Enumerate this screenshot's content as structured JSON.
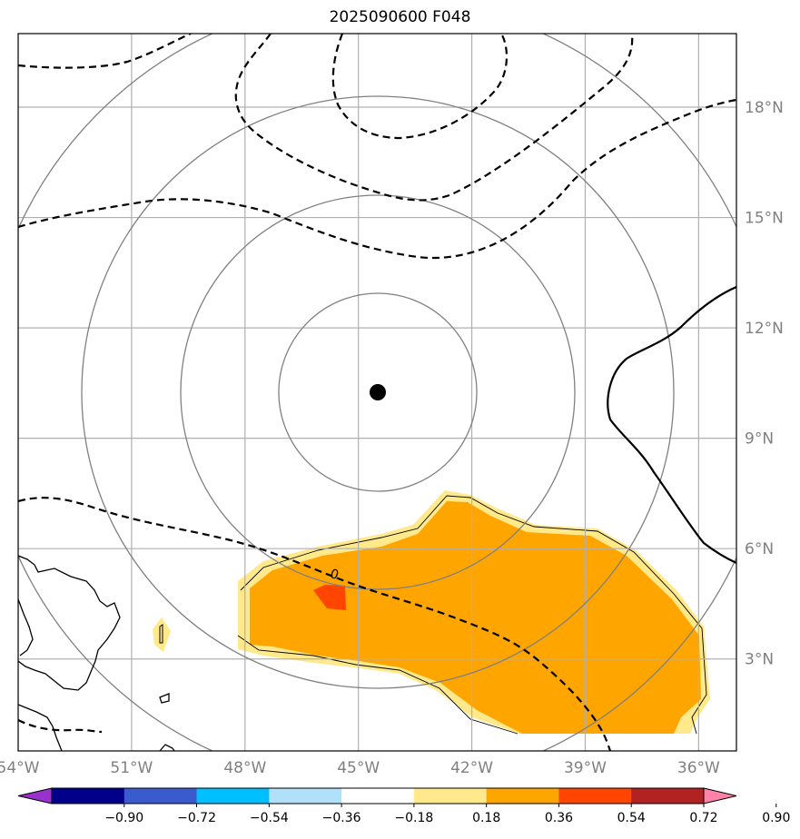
{
  "title": "2025090600 F048",
  "map": {
    "lon_range": [
      -54.0,
      -35.0
    ],
    "lat_range": [
      0.5,
      20.0
    ],
    "lon_ticks": [
      "54°W",
      "51°W",
      "48°W",
      "45°W",
      "42°W",
      "39°W",
      "36°W"
    ],
    "lat_ticks": [
      "3°N",
      "6°N",
      "9°N",
      "12°N",
      "15°N",
      "18°N"
    ],
    "gridlines": true,
    "storm_center": {
      "lon": -44.5,
      "lat": 10.5
    },
    "range_rings": 4,
    "contour_label": "0"
  },
  "colorbar": {
    "ticks": [
      "−0.90",
      "−0.72",
      "−0.54",
      "−0.36",
      "−0.18",
      "0.18",
      "0.36",
      "0.54",
      "0.72",
      "0.90"
    ],
    "colors": [
      "#9932cc",
      "#00008b",
      "#3a5bcd",
      "#00bfff",
      "#b0e0fa",
      "#ffffff",
      "#ffe98a",
      "#ffa500",
      "#ff4500",
      "#b22222",
      "#ff82ab"
    ],
    "extend": "both"
  }
}
